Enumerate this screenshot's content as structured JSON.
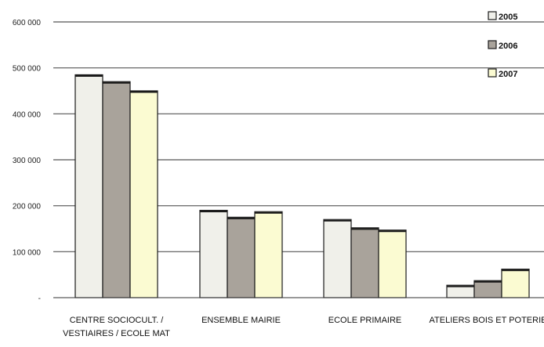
{
  "chart_data": {
    "type": "bar",
    "title": "",
    "xlabel": "",
    "ylabel": "",
    "ylim": [
      0,
      600000
    ],
    "yticks": [
      {
        "value": 0,
        "label": "-"
      },
      {
        "value": 100000,
        "label": "100 000"
      },
      {
        "value": 200000,
        "label": "200 000"
      },
      {
        "value": 300000,
        "label": "300 000"
      },
      {
        "value": 400000,
        "label": "400 000"
      },
      {
        "value": 500000,
        "label": "500 000"
      },
      {
        "value": 600000,
        "label": "600 000"
      }
    ],
    "grid": true,
    "legend_position": "top-right",
    "categories": [
      "CENTRE SOCIOCULT. / VESTIAIRES / ECOLE MAT",
      "ENSEMBLE MAIRIE",
      "ECOLE PRIMAIRE",
      "ATELIERS BOIS ET POTERIE"
    ],
    "category_lines": [
      [
        "CENTRE SOCIOCULT. /",
        "VESTIAIRES / ECOLE MAT"
      ],
      [
        "ENSEMBLE MAIRIE"
      ],
      [
        "ECOLE PRIMAIRE"
      ],
      [
        "ATELIERS BOIS ET POTERIE"
      ]
    ],
    "series": [
      {
        "name": "2005",
        "color": "#f0f0ea",
        "values": [
          485000,
          190000,
          170000,
          27000
        ]
      },
      {
        "name": "2006",
        "color": "#a9a39b",
        "values": [
          470000,
          175000,
          152000,
          37000
        ]
      },
      {
        "name": "2007",
        "color": "#fbfbd2",
        "values": [
          450000,
          187000,
          147000,
          62000
        ]
      }
    ]
  }
}
